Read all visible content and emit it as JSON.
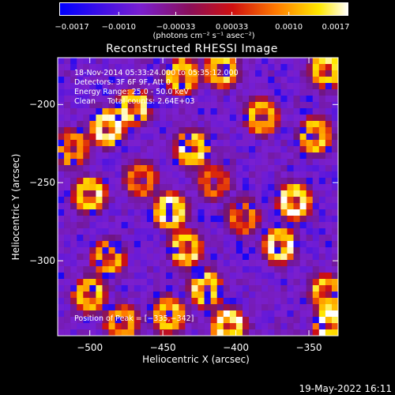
{
  "chart_data": {
    "type": "heatmap",
    "title": "Reconstructed RHESSI Image",
    "xlabel": "Heliocentric X (arcsec)",
    "ylabel": "Heliocentric Y (arcsec)",
    "xlim": [
      -522,
      -330
    ],
    "ylim": [
      -348,
      -170
    ],
    "x_ticks": [
      -500,
      -450,
      -400,
      -350
    ],
    "x_tick_labels": [
      "−500",
      "−450",
      "−400",
      "−350"
    ],
    "y_ticks": [
      -200,
      -250,
      -300
    ],
    "y_tick_labels": [
      "−200",
      "−250",
      "−300"
    ],
    "annotations": {
      "line1": "18-Nov-2014 05:33:24.000 to 05:35:12.000",
      "line2": "Detectors: 3F 6F 9F, Att 0",
      "line3": "Energy Range: 25.0 - 50.0 keV",
      "line4": "Clean     Total counts: 2.64E+03",
      "peak": "Position of Peak = [−335,−342]"
    },
    "peak_position": [
      -335,
      -342
    ],
    "colorbar": {
      "range": [
        -0.0017,
        0.0017
      ],
      "ticks": [
        -0.0017,
        -0.001,
        -0.00033,
        0.00033,
        0.001,
        0.0017
      ],
      "tick_labels": [
        "−0.0017",
        "−0.0010",
        "−0.00033",
        "0.00033",
        "0.0010",
        "0.0017"
      ],
      "unit": "(photons cm⁻² s⁻¹ asec⁻²)",
      "colormap_stops": [
        "#0000ff",
        "#7a1fd0",
        "#8a0f5a",
        "#d01010",
        "#ff7a00",
        "#ffe800",
        "#ffffff"
      ]
    },
    "grid": false,
    "hotspots": [
      {
        "x": -488,
        "y": -215,
        "v": 1.0
      },
      {
        "x": -470,
        "y": -202,
        "v": 0.9
      },
      {
        "x": -500,
        "y": -258,
        "v": 0.85
      },
      {
        "x": -512,
        "y": -228,
        "v": 0.7
      },
      {
        "x": -487,
        "y": -298,
        "v": 0.75
      },
      {
        "x": -500,
        "y": -322,
        "v": 0.8
      },
      {
        "x": -478,
        "y": -340,
        "v": 0.7
      },
      {
        "x": -437,
        "y": -182,
        "v": 0.85
      },
      {
        "x": -410,
        "y": -178,
        "v": 0.8
      },
      {
        "x": -430,
        "y": -228,
        "v": 0.9
      },
      {
        "x": -445,
        "y": -268,
        "v": 0.95
      },
      {
        "x": -434,
        "y": -292,
        "v": 0.85
      },
      {
        "x": -446,
        "y": -335,
        "v": 0.8
      },
      {
        "x": -420,
        "y": -318,
        "v": 0.9
      },
      {
        "x": -405,
        "y": -342,
        "v": 0.95
      },
      {
        "x": -395,
        "y": -272,
        "v": 0.6
      },
      {
        "x": -382,
        "y": -208,
        "v": 0.75
      },
      {
        "x": -360,
        "y": -262,
        "v": 0.95
      },
      {
        "x": -370,
        "y": -290,
        "v": 0.9
      },
      {
        "x": -346,
        "y": -220,
        "v": 0.8
      },
      {
        "x": -338,
        "y": -178,
        "v": 0.85
      },
      {
        "x": -338,
        "y": -320,
        "v": 0.75
      },
      {
        "x": -335,
        "y": -342,
        "v": 1.0
      },
      {
        "x": -465,
        "y": -248,
        "v": 0.6
      },
      {
        "x": -415,
        "y": -250,
        "v": 0.55
      }
    ]
  },
  "footer": {
    "timestamp": "19-May-2022 16:11"
  }
}
